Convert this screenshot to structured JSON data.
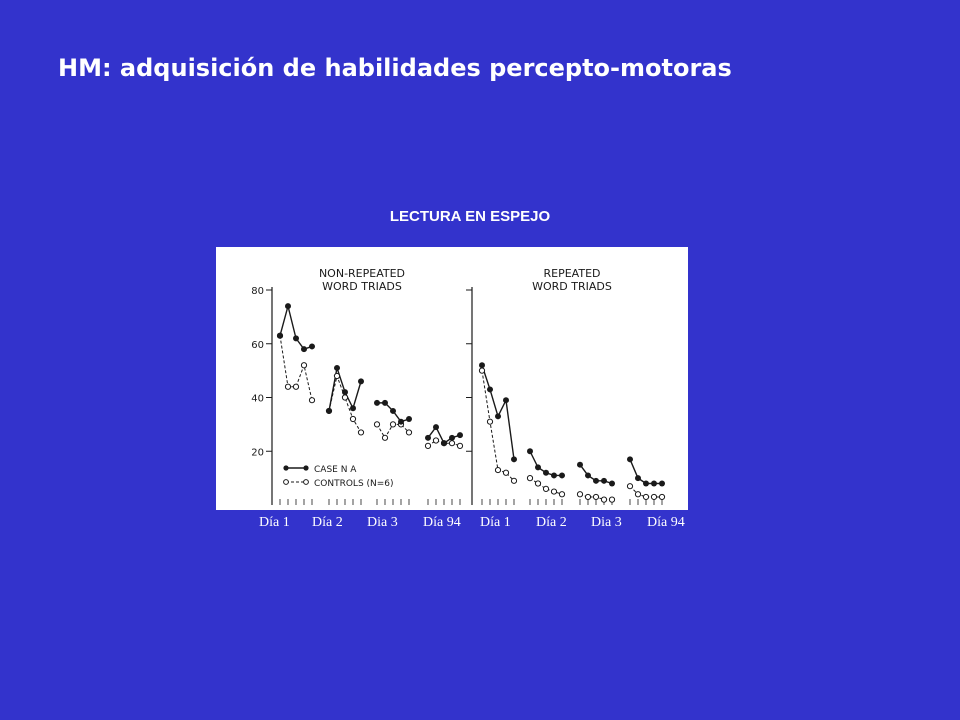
{
  "slide": {
    "title": "HM: adquisición de habilidades percepto-motoras",
    "chart_heading": "LECTURA EN ESPEJO"
  },
  "colors": {
    "background": "#3333cc",
    "text": "#ffffff",
    "figure_bg": "#ffffff",
    "ink": "#1a1a1a"
  },
  "chart_data": {
    "type": "line",
    "ylim": [
      0,
      80
    ],
    "yticks": [
      20,
      40,
      60,
      80
    ],
    "legend": {
      "position": "bottom-left",
      "case_label": "CASE N A",
      "controls_label": "CONTROLS (N=6)"
    },
    "x_day_labels": [
      "Día 1",
      "Día 2",
      "Dia 3",
      "Día 94",
      "Día 1",
      "Día 2",
      "Dia 3",
      "Día 94"
    ],
    "panels": [
      {
        "title_line1": "NON-REPEATED",
        "title_line2": "WORD TRIADS",
        "days": [
          {
            "case": [
              63,
              74,
              62,
              58,
              59
            ],
            "controls": [
              63,
              44,
              44,
              52,
              39
            ]
          },
          {
            "case": [
              35,
              51,
              42,
              36,
              46
            ],
            "controls": [
              35,
              48,
              40,
              32,
              27
            ]
          },
          {
            "case": [
              38,
              38,
              35,
              31,
              32
            ],
            "controls": [
              30,
              25,
              30,
              30,
              27
            ]
          },
          {
            "case": [
              25,
              29,
              23,
              25,
              26
            ],
            "controls": [
              22,
              24,
              23,
              23,
              22
            ]
          }
        ]
      },
      {
        "title_line1": "REPEATED",
        "title_line2": "WORD TRIADS",
        "days": [
          {
            "case": [
              52,
              43,
              33,
              39,
              17
            ],
            "controls": [
              50,
              31,
              13,
              12,
              9
            ]
          },
          {
            "case": [
              20,
              14,
              12,
              11,
              11
            ],
            "controls": [
              10,
              8,
              6,
              5,
              4
            ]
          },
          {
            "case": [
              15,
              11,
              9,
              9,
              8
            ],
            "controls": [
              4,
              3,
              3,
              2,
              2
            ]
          },
          {
            "case": [
              17,
              10,
              8,
              8,
              8
            ],
            "controls": [
              7,
              4,
              3,
              3,
              3
            ]
          }
        ]
      }
    ]
  }
}
